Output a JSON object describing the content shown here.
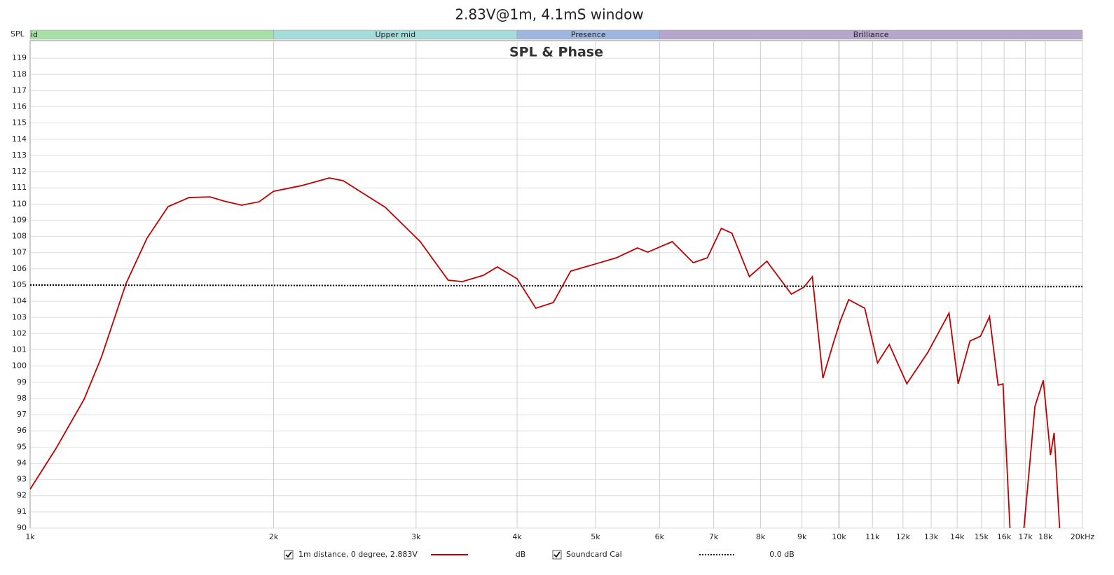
{
  "chart_data": {
    "type": "line",
    "title": "2.83V@1m, 4.1mS window",
    "subtitle": "SPL & Phase",
    "y_label": "SPL",
    "x_scale": "log",
    "grid": true,
    "xlim": [
      1000,
      20000
    ],
    "ylim": [
      90,
      120
    ],
    "xticks": [
      {
        "value": 1000,
        "label": "1k"
      },
      {
        "value": 2000,
        "label": "2k"
      },
      {
        "value": 3000,
        "label": "3k"
      },
      {
        "value": 4000,
        "label": "4k"
      },
      {
        "value": 5000,
        "label": "5k"
      },
      {
        "value": 6000,
        "label": "6k"
      },
      {
        "value": 7000,
        "label": "7k"
      },
      {
        "value": 8000,
        "label": "8k"
      },
      {
        "value": 9000,
        "label": "9k"
      },
      {
        "value": 10000,
        "label": "10k"
      },
      {
        "value": 11000,
        "label": "11k"
      },
      {
        "value": 12000,
        "label": "12k"
      },
      {
        "value": 13000,
        "label": "13k"
      },
      {
        "value": 14000,
        "label": "14k"
      },
      {
        "value": 15000,
        "label": "15k"
      },
      {
        "value": 16000,
        "label": "16k"
      },
      {
        "value": 17000,
        "label": "17k"
      },
      {
        "value": 18000,
        "label": "18k"
      },
      {
        "value": 20000,
        "label": "20kHz"
      }
    ],
    "yticks": [
      90,
      91,
      92,
      93,
      94,
      95,
      96,
      97,
      98,
      99,
      100,
      101,
      102,
      103,
      104,
      105,
      106,
      107,
      108,
      109,
      110,
      111,
      112,
      113,
      114,
      115,
      116,
      117,
      118,
      119
    ],
    "bands": [
      {
        "label": "id",
        "from": 1000,
        "to": 2000,
        "color": "#a6e2a6"
      },
      {
        "label": "Upper mid",
        "from": 2000,
        "to": 4000,
        "color": "#a3dcd8"
      },
      {
        "label": "Presence",
        "from": 4000,
        "to": 6000,
        "color": "#9fb6e0"
      },
      {
        "label": "Brilliance",
        "from": 6000,
        "to": 20000,
        "color": "#b6a6cc"
      }
    ],
    "series": [
      {
        "name": "1m distance, 0 degree, 2.883V",
        "unit_label": "dB",
        "color": "#c00000",
        "dash": false,
        "x": [
          1000,
          1076,
          1166,
          1225,
          1314,
          1395,
          1481,
          1572,
          1669,
          1737,
          1826,
          1919,
          2000,
          2163,
          2343,
          2438,
          2748,
          3036,
          3287,
          3422,
          3633,
          3781,
          4000,
          4219,
          4434,
          4659,
          4997,
          5305,
          5633,
          5802,
          6221,
          6604,
          6874,
          7154,
          7372,
          7749,
          8144,
          8732,
          9050,
          9270,
          9553,
          9840,
          10040,
          10280,
          10760,
          11160,
          11540,
          12130,
          12880,
          13680,
          14040,
          14520,
          14960,
          15350,
          15730,
          15950,
          16270,
          16500,
          16930,
          17470,
          17890,
          18260,
          18450,
          18740
        ],
        "values": [
          92.4,
          94.9,
          97.95,
          100.55,
          105.1,
          107.9,
          109.84,
          110.4,
          110.44,
          110.18,
          109.93,
          110.14,
          110.79,
          111.13,
          111.61,
          111.44,
          109.8,
          107.68,
          105.3,
          105.21,
          105.6,
          106.12,
          105.39,
          103.57,
          103.92,
          105.86,
          106.3,
          106.68,
          107.29,
          107.03,
          107.68,
          106.38,
          106.68,
          108.5,
          108.2,
          105.52,
          106.47,
          104.44,
          104.87,
          105.52,
          99.25,
          101.41,
          102.8,
          104.1,
          103.57,
          100.2,
          101.33,
          98.91,
          100.85,
          103.27,
          98.91,
          101.55,
          101.84,
          103.05,
          98.82,
          98.9,
          90,
          null,
          90,
          97.52,
          99.12,
          94.5,
          95.88,
          90
        ]
      },
      {
        "name": "Soundcard Cal",
        "unit_label": "0.0 dB",
        "color": "#000000",
        "dash": true,
        "x": [
          1000,
          20000
        ],
        "values": [
          105,
          104.9
        ]
      }
    ]
  }
}
